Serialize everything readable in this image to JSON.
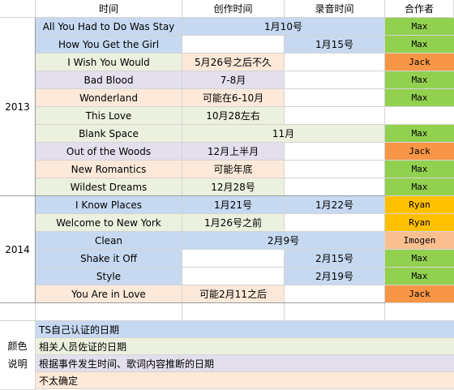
{
  "colors": {
    "ts_confirmed": "#c6d9f1",
    "staff_confirmed": "#ebf1de",
    "inferred": "#e4dfec",
    "uncertain": "#fde9d9",
    "white": "#ffffff",
    "collab_max": "#92d050",
    "collab_jack": "#f79646",
    "collab_ryan": "#ffc000",
    "collab_imogen": "#fabf8f"
  },
  "header": {
    "time": "时间",
    "written": "创作时间",
    "recorded": "录音时间",
    "collaborator": "合作者"
  },
  "years": [
    {
      "label": "2013",
      "first_row": 0,
      "row_count": 10
    },
    {
      "label": "2014",
      "first_row": 10,
      "row_count": 6
    }
  ],
  "rows": [
    {
      "song": "All You Had to Do Was Stay",
      "song_color": "ts_confirmed",
      "cells": [
        {
          "text": "1月10号",
          "start": 2,
          "span": 2,
          "color": "ts_confirmed"
        }
      ],
      "collab": "Max",
      "collab_color": "collab_max"
    },
    {
      "song": "How You Get the Girl",
      "song_color": "ts_confirmed",
      "cells": [
        {
          "text": "",
          "start": 2,
          "span": 1,
          "color": "white"
        },
        {
          "text": "1月15号",
          "start": 3,
          "span": 1,
          "color": "ts_confirmed"
        }
      ],
      "collab": "Max",
      "collab_color": "collab_max"
    },
    {
      "song": "I Wish You Would",
      "song_color": "staff_confirmed",
      "cells": [
        {
          "text": "5月26号之后不久",
          "start": 2,
          "span": 1,
          "color": "uncertain"
        },
        {
          "text": "",
          "start": 3,
          "span": 1,
          "color": "white"
        }
      ],
      "collab": "Jack",
      "collab_color": "collab_jack"
    },
    {
      "song": "Bad Blood",
      "song_color": "inferred",
      "cells": [
        {
          "text": "7-8月",
          "start": 2,
          "span": 1,
          "color": "inferred"
        },
        {
          "text": "",
          "start": 3,
          "span": 1,
          "color": "white"
        }
      ],
      "collab": "Max",
      "collab_color": "collab_max"
    },
    {
      "song": "Wonderland",
      "song_color": "uncertain",
      "cells": [
        {
          "text": "可能在6-10月",
          "start": 2,
          "span": 1,
          "color": "uncertain"
        },
        {
          "text": "",
          "start": 3,
          "span": 1,
          "color": "white"
        }
      ],
      "collab": "Max",
      "collab_color": "collab_max"
    },
    {
      "song": "This Love",
      "song_color": "staff_confirmed",
      "cells": [
        {
          "text": "10月28左右",
          "start": 2,
          "span": 1,
          "color": "staff_confirmed"
        },
        {
          "text": "",
          "start": 3,
          "span": 1,
          "color": "white"
        }
      ],
      "collab": "",
      "collab_color": "white"
    },
    {
      "song": "Blank Space",
      "song_color": "staff_confirmed",
      "cells": [
        {
          "text": "11月",
          "start": 2,
          "span": 2,
          "color": "staff_confirmed"
        }
      ],
      "collab": "Max",
      "collab_color": "collab_max"
    },
    {
      "song": "Out of the Woods",
      "song_color": "inferred",
      "cells": [
        {
          "text": "12月上半月",
          "start": 2,
          "span": 1,
          "color": "inferred"
        },
        {
          "text": "",
          "start": 3,
          "span": 1,
          "color": "white"
        }
      ],
      "collab": "Jack",
      "collab_color": "collab_jack"
    },
    {
      "song": "New Romantics",
      "song_color": "uncertain",
      "cells": [
        {
          "text": "可能年底",
          "start": 2,
          "span": 1,
          "color": "uncertain"
        },
        {
          "text": "",
          "start": 3,
          "span": 1,
          "color": "white"
        }
      ],
      "collab": "Max",
      "collab_color": "collab_max"
    },
    {
      "song": "Wildest Dreams",
      "song_color": "staff_confirmed",
      "cells": [
        {
          "text": "12月28号",
          "start": 2,
          "span": 1,
          "color": "staff_confirmed"
        },
        {
          "text": "",
          "start": 3,
          "span": 1,
          "color": "white"
        }
      ],
      "collab": "Max",
      "collab_color": "collab_max"
    },
    {
      "song": "I Know Places",
      "song_color": "ts_confirmed",
      "cells": [
        {
          "text": "1月21号",
          "start": 2,
          "span": 1,
          "color": "ts_confirmed"
        },
        {
          "text": "1月22号",
          "start": 3,
          "span": 1,
          "color": "ts_confirmed"
        }
      ],
      "collab": "Ryan",
      "collab_color": "collab_ryan"
    },
    {
      "song": "Welcome to New York",
      "song_color": "staff_confirmed",
      "cells": [
        {
          "text": "1月26号之前",
          "start": 2,
          "span": 1,
          "color": "staff_confirmed"
        },
        {
          "text": "",
          "start": 3,
          "span": 1,
          "color": "white"
        }
      ],
      "collab": "Ryan",
      "collab_color": "collab_ryan"
    },
    {
      "song": "Clean",
      "song_color": "ts_confirmed",
      "cells": [
        {
          "text": "2月9号",
          "start": 2,
          "span": 2,
          "color": "ts_confirmed"
        }
      ],
      "collab": "Imogen",
      "collab_color": "collab_imogen"
    },
    {
      "song": "Shake it Off",
      "song_color": "ts_confirmed",
      "cells": [
        {
          "text": "",
          "start": 2,
          "span": 1,
          "color": "white"
        },
        {
          "text": "2月15号",
          "start": 3,
          "span": 1,
          "color": "ts_confirmed"
        }
      ],
      "collab": "Max",
      "collab_color": "collab_max"
    },
    {
      "song": "Style",
      "song_color": "ts_confirmed",
      "cells": [
        {
          "text": "",
          "start": 2,
          "span": 1,
          "color": "white"
        },
        {
          "text": "2月19号",
          "start": 3,
          "span": 1,
          "color": "ts_confirmed"
        }
      ],
      "collab": "Max",
      "collab_color": "collab_max"
    },
    {
      "song": "You Are in Love",
      "song_color": "uncertain",
      "cells": [
        {
          "text": "可能2月11之后",
          "start": 2,
          "span": 1,
          "color": "uncertain"
        },
        {
          "text": "",
          "start": 3,
          "span": 1,
          "color": "white"
        }
      ],
      "collab": "Jack",
      "collab_color": "collab_jack"
    }
  ],
  "legend": {
    "label_line1": "颜色",
    "label_line2": "说明",
    "items": [
      {
        "text": "TS自己认证的日期",
        "color": "ts_confirmed"
      },
      {
        "text": "相关人员佐证的日期",
        "color": "staff_confirmed"
      },
      {
        "text": "根据事件发生时间、歌词内容推断的日期",
        "color": "inferred"
      },
      {
        "text": "不太确定",
        "color": "uncertain"
      }
    ]
  }
}
